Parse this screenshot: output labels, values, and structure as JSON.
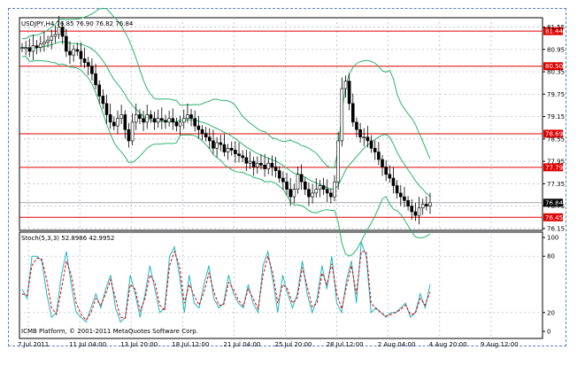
{
  "colors": {
    "background": "#ffffff",
    "grid": "#aab3c3",
    "candle": "#000000",
    "bollinger": "#2db36b",
    "level": "#e00000",
    "stoch_main": "#1fb7c4",
    "stoch_signal": "#e00000",
    "frame": "#5a7fc0"
  },
  "chart_data": [
    {
      "type": "candlestick",
      "title": "USDJPY,H4  76.85 76.90 76.82 76.84",
      "symbol": "USDJPY",
      "timeframe": "H4",
      "ohlc_last": {
        "open": 76.85,
        "high": 76.9,
        "low": 76.82,
        "close": 76.84
      },
      "y_ticks": [
        "81.55",
        "80.95",
        "80.35",
        "79.75",
        "79.15",
        "78.55",
        "77.95",
        "77.35",
        "76.75",
        "76.15"
      ],
      "ylim": [
        76.1,
        81.8
      ],
      "grid": true,
      "levels": [
        {
          "label": "81.44",
          "value": 81.44
        },
        {
          "label": "80.50",
          "value": 80.5
        },
        {
          "label": "78.69",
          "value": 78.69
        },
        {
          "label": "77.79",
          "value": 77.79
        },
        {
          "label": "76.45",
          "value": 76.45
        }
      ],
      "current_price": "76.84",
      "current_price_value": 76.84,
      "x_ticks": [
        "7 Jul 2011",
        "11 Jul 04:00",
        "13 Jul 20:00",
        "18 Jul 12:00",
        "21 Jul 04:00",
        "25 Jul 20:00",
        "28 Jul 12:00",
        "2 Aug 04:00",
        "4 Aug 20:00",
        "9 Aug 12:00"
      ],
      "series": [
        {
          "kind": "close_path",
          "values": [
            81.0,
            81.0,
            80.9,
            81.05,
            81.0,
            81.1,
            81.15,
            81.2,
            81.3,
            81.35,
            81.55,
            81.3,
            80.9,
            80.8,
            80.95,
            80.9,
            80.7,
            80.6,
            80.5,
            80.3,
            80.0,
            79.7,
            79.5,
            79.2,
            79.0,
            78.9,
            79.1,
            79.2,
            78.8,
            78.5,
            79.0,
            79.2,
            79.1,
            79.0,
            79.2,
            79.1,
            79.0,
            79.1,
            79.05,
            79.0,
            79.1,
            79.0,
            78.9,
            79.0,
            79.1,
            79.2,
            79.1,
            78.9,
            78.8,
            78.7,
            78.6,
            78.5,
            78.3,
            78.45,
            78.4,
            78.2,
            78.3,
            78.25,
            78.15,
            78.1,
            78.05,
            77.9,
            77.95,
            77.8,
            77.9,
            77.85,
            77.75,
            77.9,
            77.8,
            77.7,
            77.5,
            77.4,
            77.2,
            77.0,
            77.2,
            77.6,
            77.4,
            77.2,
            77.0,
            77.1,
            77.2,
            77.3,
            77.2,
            77.1,
            77.0,
            77.4,
            78.5,
            79.9,
            80.1,
            79.5,
            79.0,
            78.8,
            78.6,
            78.6,
            78.5,
            78.3,
            78.2,
            78.0,
            77.8,
            77.6,
            77.5,
            77.3,
            77.1,
            77.0,
            76.9,
            76.75,
            76.6,
            76.5,
            76.7,
            76.8,
            76.75,
            76.84
          ]
        }
      ]
    },
    {
      "type": "line",
      "title": "Stoch(5,3,3) 52.8986 42.9952",
      "ylim": [
        0,
        100
      ],
      "y_ticks": [
        "100",
        "80",
        "20",
        "0"
      ],
      "footer": "ICMB Platform, © 2001-2011 MetaQuotes Software Corp.",
      "series": [
        {
          "name": "Stoch main",
          "values": [
            45,
            35,
            80,
            80,
            75,
            40,
            15,
            20,
            60,
            85,
            50,
            20,
            15,
            10,
            25,
            40,
            25,
            45,
            60,
            25,
            10,
            15,
            60,
            40,
            15,
            40,
            70,
            45,
            20,
            25,
            80,
            90,
            60,
            20,
            60,
            30,
            25,
            50,
            70,
            35,
            25,
            30,
            60,
            40,
            30,
            25,
            50,
            30,
            20,
            70,
            85,
            55,
            20,
            60,
            40,
            25,
            40,
            75,
            40,
            20,
            35,
            70,
            45,
            80,
            30,
            20,
            55,
            75,
            30,
            95,
            80,
            20,
            25,
            20,
            15,
            20,
            20,
            25,
            30,
            15,
            20,
            40,
            25,
            50
          ]
        },
        {
          "name": "Stoch signal",
          "values": [
            40,
            38,
            70,
            78,
            77,
            55,
            25,
            18,
            45,
            75,
            60,
            30,
            18,
            12,
            20,
            35,
            28,
            40,
            55,
            35,
            15,
            14,
            50,
            45,
            22,
            35,
            60,
            52,
            28,
            22,
            70,
            85,
            70,
            30,
            50,
            38,
            28,
            42,
            62,
            42,
            28,
            28,
            52,
            45,
            33,
            27,
            45,
            35,
            24,
            60,
            80,
            62,
            30,
            50,
            45,
            30,
            36,
            68,
            48,
            26,
            30,
            62,
            50,
            72,
            40,
            24,
            48,
            70,
            40,
            85,
            85,
            30,
            24,
            20,
            16,
            18,
            20,
            23,
            28,
            18,
            19,
            35,
            28,
            42
          ]
        }
      ]
    }
  ]
}
